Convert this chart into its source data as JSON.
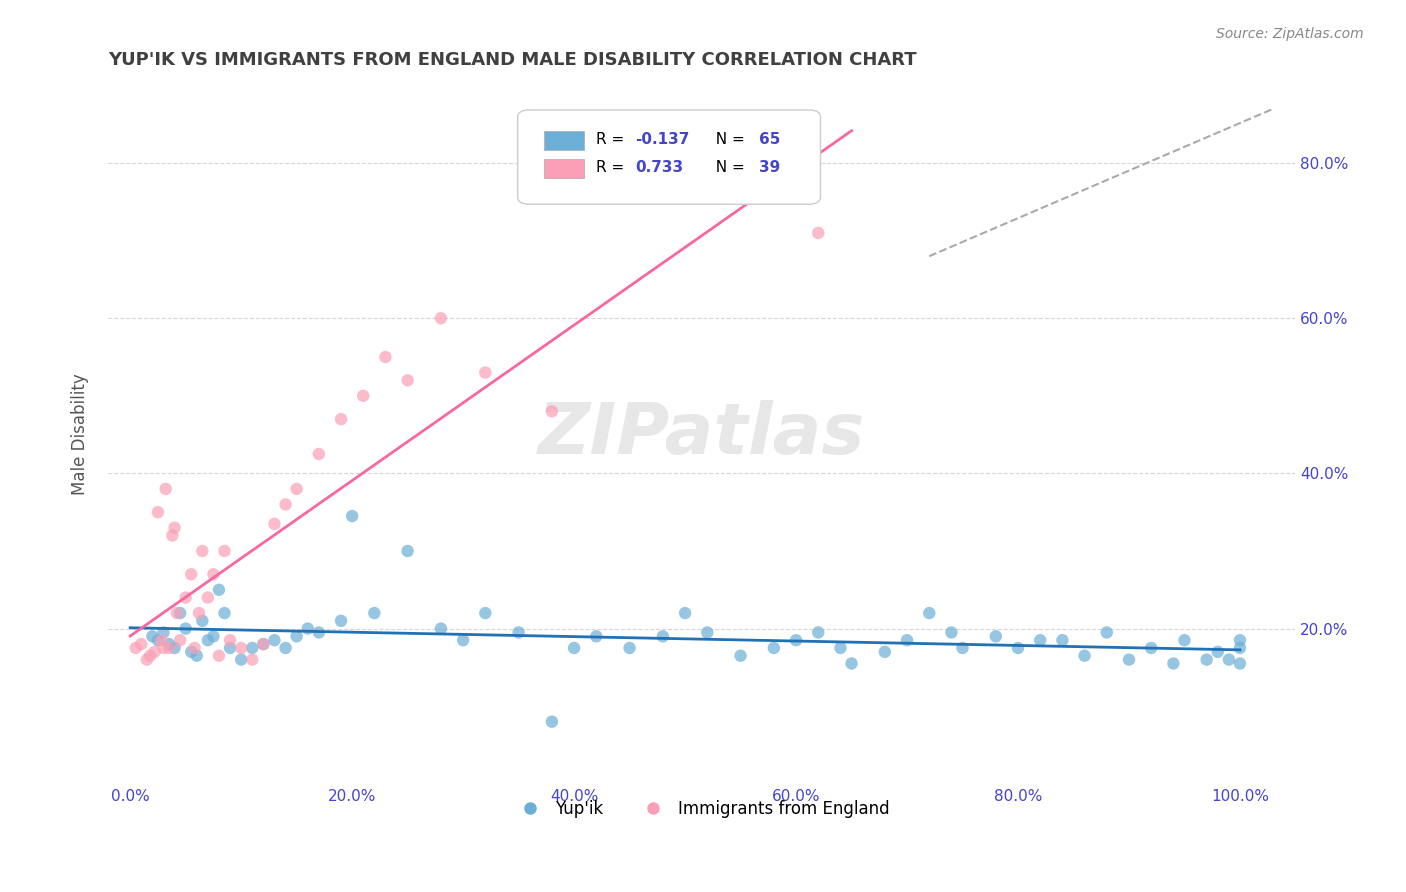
{
  "title": "YUP'IK VS IMMIGRANTS FROM ENGLAND MALE DISABILITY CORRELATION CHART",
  "source": "Source: ZipAtlas.com",
  "ylabel": "Male Disability",
  "x_tick_labels": [
    "0.0%",
    "20.0%",
    "40.0%",
    "60.0%",
    "80.0%",
    "100.0%"
  ],
  "y_tick_labels": [
    "20.0%",
    "40.0%",
    "60.0%",
    "80.0%"
  ],
  "legend_labels": [
    "Yup'ik",
    "Immigrants from England"
  ],
  "legend_r1_text": "R = ",
  "legend_r1_val": "-0.137",
  "legend_n1_text": "N = ",
  "legend_n1_val": "65",
  "legend_r2_text": "R =  ",
  "legend_r2_val": "0.733",
  "legend_n2_text": "N = ",
  "legend_n2_val": "39",
  "blue_color": "#6baed6",
  "pink_color": "#fa9fb5",
  "blue_line_color": "#2171b5",
  "pink_line_color": "#f768a1",
  "dashed_line_color": "#aaaaaa",
  "grid_color": "#cccccc",
  "title_color": "#404040",
  "axis_tick_color": "#4444cc",
  "watermark_color": "#d0d0d0",
  "blue_scatter_x": [
    0.02,
    0.025,
    0.03,
    0.035,
    0.04,
    0.045,
    0.05,
    0.055,
    0.06,
    0.065,
    0.07,
    0.075,
    0.08,
    0.085,
    0.09,
    0.1,
    0.11,
    0.12,
    0.13,
    0.14,
    0.15,
    0.16,
    0.17,
    0.19,
    0.2,
    0.22,
    0.25,
    0.28,
    0.3,
    0.32,
    0.35,
    0.38,
    0.4,
    0.42,
    0.45,
    0.48,
    0.5,
    0.52,
    0.55,
    0.58,
    0.6,
    0.62,
    0.64,
    0.65,
    0.68,
    0.7,
    0.72,
    0.74,
    0.75,
    0.78,
    0.8,
    0.82,
    0.84,
    0.86,
    0.88,
    0.9,
    0.92,
    0.94,
    0.95,
    0.97,
    0.98,
    0.99,
    1.0,
    1.0,
    1.0
  ],
  "blue_scatter_y": [
    0.19,
    0.185,
    0.195,
    0.18,
    0.175,
    0.22,
    0.2,
    0.17,
    0.165,
    0.21,
    0.185,
    0.19,
    0.25,
    0.22,
    0.175,
    0.16,
    0.175,
    0.18,
    0.185,
    0.175,
    0.19,
    0.2,
    0.195,
    0.21,
    0.345,
    0.22,
    0.3,
    0.2,
    0.185,
    0.22,
    0.195,
    0.08,
    0.175,
    0.19,
    0.175,
    0.19,
    0.22,
    0.195,
    0.165,
    0.175,
    0.185,
    0.195,
    0.175,
    0.155,
    0.17,
    0.185,
    0.22,
    0.195,
    0.175,
    0.19,
    0.175,
    0.185,
    0.185,
    0.165,
    0.195,
    0.16,
    0.175,
    0.155,
    0.185,
    0.16,
    0.17,
    0.16,
    0.185,
    0.175,
    0.155
  ],
  "pink_scatter_x": [
    0.005,
    0.01,
    0.015,
    0.018,
    0.022,
    0.025,
    0.028,
    0.03,
    0.032,
    0.035,
    0.038,
    0.04,
    0.042,
    0.045,
    0.05,
    0.055,
    0.058,
    0.062,
    0.065,
    0.07,
    0.075,
    0.08,
    0.085,
    0.09,
    0.1,
    0.11,
    0.12,
    0.13,
    0.14,
    0.15,
    0.17,
    0.19,
    0.21,
    0.23,
    0.25,
    0.28,
    0.32,
    0.38,
    0.62
  ],
  "pink_scatter_y": [
    0.175,
    0.18,
    0.16,
    0.165,
    0.17,
    0.35,
    0.185,
    0.175,
    0.38,
    0.175,
    0.32,
    0.33,
    0.22,
    0.185,
    0.24,
    0.27,
    0.175,
    0.22,
    0.3,
    0.24,
    0.27,
    0.165,
    0.3,
    0.185,
    0.175,
    0.16,
    0.18,
    0.335,
    0.36,
    0.38,
    0.425,
    0.47,
    0.5,
    0.55,
    0.52,
    0.6,
    0.53,
    0.48,
    0.71
  ]
}
